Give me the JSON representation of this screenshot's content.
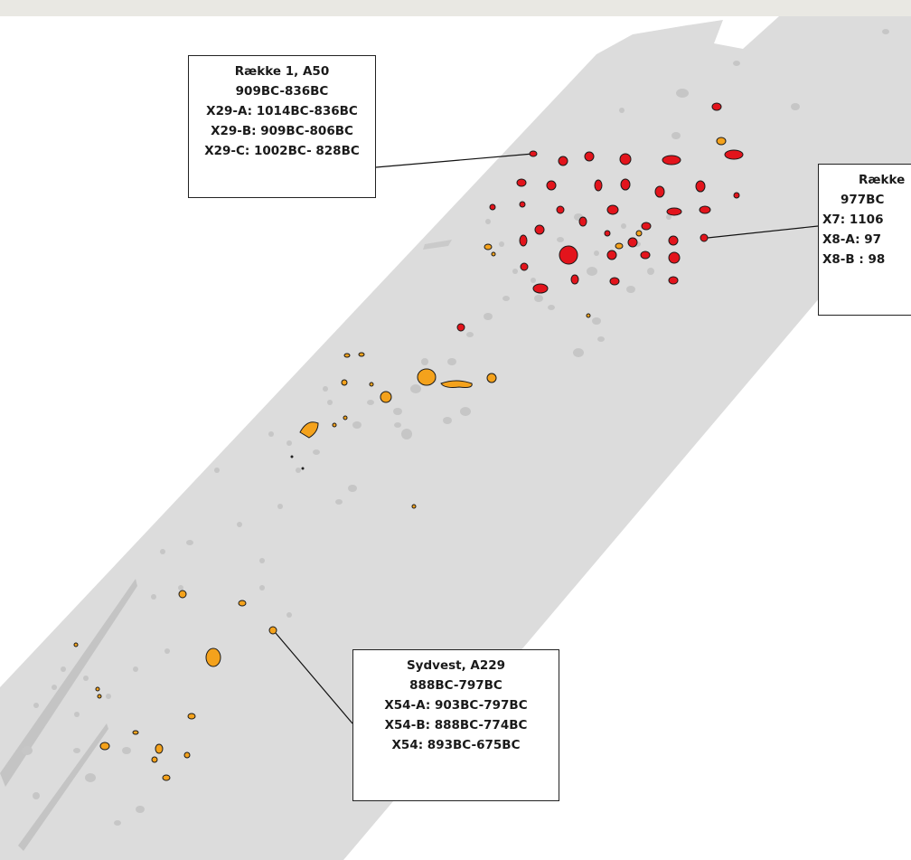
{
  "colors": {
    "background": "#ffffff",
    "strip": "#dcdcdc",
    "gray_feature": "#c6c6c6",
    "red_feature": "#e3141c",
    "orange_feature": "#f4a21c",
    "outline": "#1a1a1a"
  },
  "callouts": [
    {
      "id": "raekke1-a50",
      "lines": [
        "Række 1, A50",
        "909BC-836BC",
        "X29-A: 1014BC-836BC",
        "X29-B: 909BC-806BC",
        "X29-C: 1002BC- 828BC"
      ]
    },
    {
      "id": "raekke-right",
      "lines": [
        "Række",
        "977BC",
        "X7: 1106",
        "X8-A: 97",
        "X8-B : 98"
      ]
    },
    {
      "id": "sydvest-a229",
      "lines": [
        "Sydvest, A229",
        "888BC-797BC",
        "X54-A: 903BC-797BC",
        "X54-B: 888BC-774BC",
        "X54: 893BC-675BC"
      ]
    }
  ]
}
